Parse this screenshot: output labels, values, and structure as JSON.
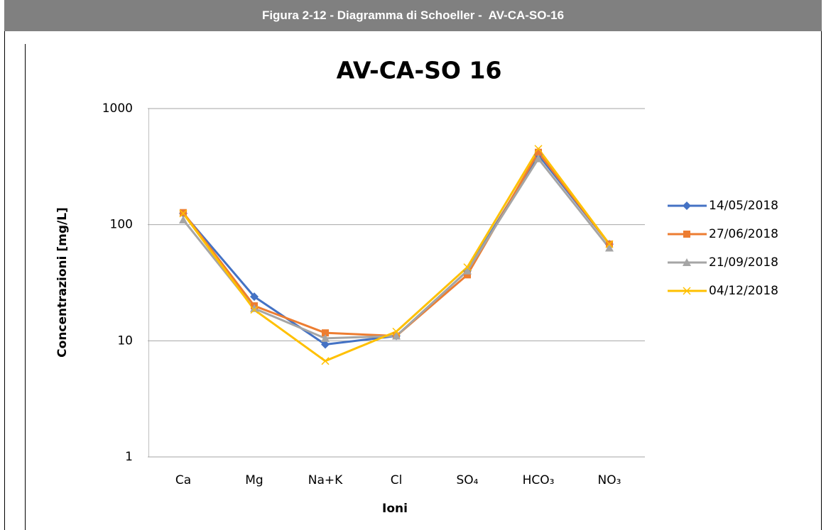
{
  "caption": "Figura 2-12 - Diagramma di Schoeller -  AV-CA-SO-16",
  "chart_data": {
    "type": "line",
    "title": "AV-CA-SO 16",
    "x_label": "Ioni",
    "y_label": "Concentrazioni [mg/L]",
    "categories": [
      "Ca",
      "Mg",
      "Na+K",
      "Cl",
      "SO₄",
      "HCO₃",
      "NO₃"
    ],
    "log_scale": true,
    "grid": true,
    "legend": "right",
    "ylim": [
      1,
      1000
    ],
    "yticks": [
      1,
      10,
      100,
      1000
    ],
    "series": [
      {
        "name": "14/05/2018",
        "color": "#4472c4",
        "marker": "diamond",
        "values": [
          125,
          24,
          9.3,
          11,
          40,
          400,
          68
        ]
      },
      {
        "name": "27/06/2018",
        "color": "#ed7d31",
        "marker": "square",
        "values": [
          127,
          20,
          11.7,
          11,
          37,
          420,
          68
        ]
      },
      {
        "name": "21/09/2018",
        "color": "#a5a5a5",
        "marker": "triangle",
        "values": [
          110,
          19,
          10.5,
          11,
          40,
          370,
          63
        ]
      },
      {
        "name": "04/12/2018",
        "color": "#ffc000",
        "marker": "x",
        "values": [
          125,
          18.5,
          6.7,
          12,
          43,
          450,
          68
        ]
      }
    ]
  }
}
